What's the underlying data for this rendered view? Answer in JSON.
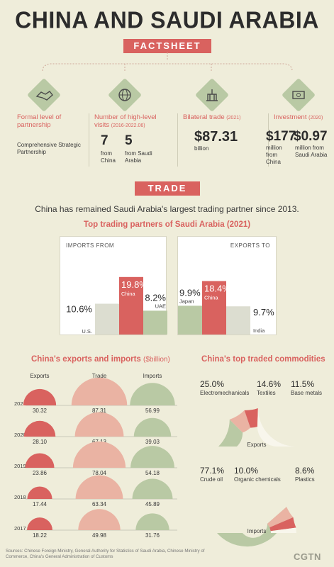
{
  "header": {
    "title": "CHINA AND SAUDI ARABIA",
    "factsheet": "FACTSHEET",
    "trade": "TRADE"
  },
  "facts": {
    "formal": {
      "label": "Formal level of partnership",
      "value": "Comprehensive Strategic Partnership"
    },
    "visits": {
      "label": "Number of high-level visits",
      "period": "(2016-2022.06)",
      "china_num": "7",
      "china_from": "from China",
      "saudi_num": "5",
      "saudi_from": "from Saudi Arabia"
    },
    "bilateral": {
      "label": "Bilateral trade",
      "year": "(2021)",
      "value": "$87.31",
      "unit": "billion"
    },
    "investment": {
      "label": "Investment",
      "year": "(2020)",
      "china_value": "$177",
      "china_desc": "million from China",
      "saudi_value": "$0.97",
      "saudi_desc": "million from Saudi Arabia"
    }
  },
  "trade_intro": "China has remained Saudi Arabia's largest trading partner since 2013.",
  "partners_title": "Top trading partners of Saudi Arabia (2021)",
  "imports_from_label": "IMPORTS FROM",
  "exports_to_label": "EXPORTS TO",
  "cn_title": "China's exports and imports",
  "cn_unit": "($billion)",
  "cn_headers": {
    "exports": "Exports",
    "trade": "Trade",
    "imports": "Imports"
  },
  "commod_title": "China's top traded commodities",
  "commod_exports_label": "Exports",
  "commod_imports_label": "Imports",
  "sources": "Sources: Chinese Foreign Ministry, General Authority for Statistics of Saudi Arabia, Chinese Ministry of Commerce, China's General Administration of Customs",
  "brand": "CGTN",
  "colors": {
    "red": "#d9625f",
    "green": "#b9c9a4",
    "pink": "#eab3a3",
    "grey": "#dcddd0"
  },
  "chart_data": [
    {
      "type": "bar",
      "title": "IMPORTS FROM",
      "categories": [
        "U.S.",
        "China",
        "UAE"
      ],
      "values": [
        10.6,
        19.8,
        8.2
      ],
      "labels": [
        "10.6%",
        "19.8%",
        "8.2%"
      ]
    },
    {
      "type": "bar",
      "title": "EXPORTS TO",
      "categories": [
        "Japan",
        "China",
        "India"
      ],
      "values": [
        9.9,
        18.4,
        9.7
      ],
      "labels": [
        "9.9%",
        "18.4%",
        "9.7%"
      ]
    },
    {
      "type": "table",
      "title": "China's exports and imports",
      "unit": "($billion)",
      "years": [
        "2021",
        "2020",
        "2019",
        "2018",
        "2017"
      ],
      "series": [
        {
          "name": "Exports",
          "values": [
            30.32,
            28.1,
            23.86,
            17.44,
            18.22
          ],
          "labels": [
            "30.32",
            "28.10",
            "23.86",
            "17.44",
            "18.22"
          ]
        },
        {
          "name": "Trade",
          "values": [
            87.31,
            67.13,
            78.04,
            63.34,
            49.98
          ],
          "labels": [
            "87.31",
            "67.13",
            "78.04",
            "63.34",
            "49.98"
          ]
        },
        {
          "name": "Imports",
          "values": [
            56.99,
            39.03,
            54.18,
            45.89,
            31.76
          ],
          "labels": [
            "56.99",
            "39.03",
            "54.18",
            "45.89",
            "31.76"
          ]
        }
      ]
    },
    {
      "type": "pie",
      "title": "Exports",
      "categories": [
        "Electromechanicals",
        "Textiles",
        "Base metals"
      ],
      "values": [
        25.0,
        14.6,
        11.5
      ],
      "labels": [
        "25.0%",
        "14.6%",
        "11.5%"
      ]
    },
    {
      "type": "pie",
      "title": "Imports",
      "categories": [
        "Crude oil",
        "Organic chemicals",
        "Plastics"
      ],
      "values": [
        77.1,
        10.0,
        8.6
      ],
      "labels": [
        "77.1%",
        "10.0%",
        "8.6%"
      ]
    }
  ]
}
